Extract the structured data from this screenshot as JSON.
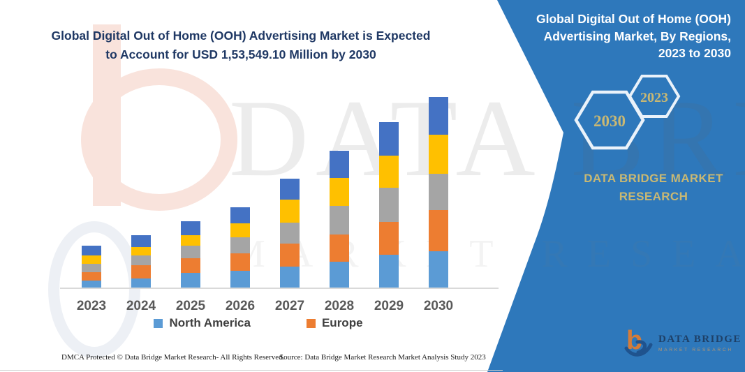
{
  "title": {
    "line1": "Global Digital Out of Home (OOH) Advertising Market is Expected",
    "line2": "to Account for USD 1,53,549.10 Million by 2030"
  },
  "sidebar": {
    "title": "Global Digital Out of Home (OOH) Advertising Market, By Regions, 2023 to 2030",
    "hexagons": [
      {
        "label": "2030"
      },
      {
        "label": "2023"
      }
    ],
    "brand": "DATA BRIDGE MARKET RESEARCH",
    "logo": {
      "name": "DATA BRIDGE",
      "tagline": "MARKET RESEARCH"
    }
  },
  "footer": {
    "dmca": "DMCA Protected © Data Bridge Market Research-  All Rights Reserved.",
    "source": "Source: Data Bridge Market Research  Market Analysis Study 2023"
  },
  "watermark": {
    "text1": "DATA BRIDGE",
    "text2": "MARKET RESEARCH"
  },
  "colors": {
    "panel_blue": "#2E78BB",
    "title_navy": "#1F3864",
    "axis_label_gray": "#595959",
    "legend_text_gray": "#3F3F3F",
    "gold_text": "#C9B873",
    "axis_line_gray": "#D9D9D9",
    "hex_border_white": "#EAF2FA",
    "logo_orange": "#E87D2B",
    "logo_navy": "#1E4F8A"
  },
  "chart_data": {
    "type": "bar",
    "stacked": true,
    "title": "Global Digital Out of Home (OOH) Advertising Market, By Regions, 2023 to 2030",
    "xlabel": "",
    "ylabel": "",
    "grid": false,
    "y_axis_shown": false,
    "value_units": "relative height (no value axis shown in image)",
    "legend_position": "bottom",
    "legend": [
      "North America",
      "Europe"
    ],
    "categories": [
      "2023",
      "2024",
      "2025",
      "2026",
      "2027",
      "2028",
      "2029",
      "2030"
    ],
    "series": [
      {
        "name": "North America",
        "color": "#5B9BD5",
        "in_legend": true,
        "values": [
          11,
          14,
          22,
          25,
          31,
          38,
          48,
          53
        ]
      },
      {
        "name": "Europe",
        "color": "#ED7D31",
        "in_legend": true,
        "values": [
          12,
          19,
          21,
          25,
          33,
          39,
          47,
          59
        ]
      },
      {
        "name": "",
        "color": "#A5A5A5",
        "in_legend": false,
        "values": [
          12,
          14,
          18,
          23,
          30,
          41,
          49,
          52
        ]
      },
      {
        "name": "",
        "color": "#FFC000",
        "in_legend": false,
        "values": [
          12,
          12,
          15,
          20,
          33,
          40,
          46,
          56
        ]
      },
      {
        "name": "",
        "color": "#4472C4",
        "in_legend": false,
        "values": [
          14,
          17,
          20,
          23,
          30,
          39,
          48,
          54
        ]
      }
    ]
  }
}
